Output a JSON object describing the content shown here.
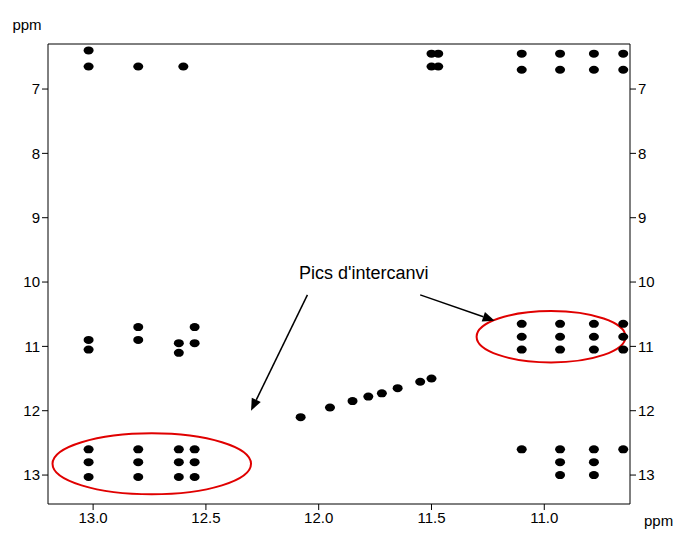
{
  "chart_data": {
    "type": "scatter",
    "x_label": "ppm",
    "y_label": "ppm",
    "xlim": [
      13.2,
      10.62
    ],
    "xticks": [
      {
        "value": 13,
        "label": "13.0"
      },
      {
        "value": 12.5,
        "label": "12.5"
      },
      {
        "value": 12,
        "label": "12.0"
      },
      {
        "value": 11.5,
        "label": "11.5"
      },
      {
        "value": 11,
        "label": "11.0"
      }
    ],
    "ylim": [
      13.45,
      6.3
    ],
    "yticks": [
      7,
      8,
      9,
      10,
      11,
      12,
      13
    ],
    "color": "#000000",
    "marker": "circle",
    "grid": false,
    "x": [
      13.02,
      12.8,
      12.62,
      12.55,
      13.02,
      12.8,
      12.62,
      12.55,
      13.02,
      12.8,
      12.62,
      12.55,
      11.1,
      10.93,
      10.78,
      10.65,
      11.1,
      10.93,
      10.78,
      10.65,
      11.1,
      10.93,
      10.78,
      10.65,
      13.02,
      13.02,
      12.8,
      12.8,
      12.62,
      12.62,
      12.55,
      12.55,
      11.1,
      10.93,
      10.93,
      10.93,
      10.78,
      10.78,
      10.78,
      10.65,
      11.1,
      10.93,
      10.78,
      10.65,
      11.1,
      10.93,
      10.78,
      10.65,
      11.5,
      11.47,
      11.5,
      11.47,
      13.02,
      12.8,
      12.6,
      13.02,
      12.08,
      11.95,
      11.85,
      11.78,
      11.72,
      11.65,
      11.55,
      11.5
    ],
    "y": [
      12.6,
      12.6,
      12.6,
      12.6,
      12.8,
      12.8,
      12.8,
      12.8,
      13.03,
      13.03,
      13.03,
      13.03,
      10.65,
      10.65,
      10.65,
      10.65,
      10.85,
      10.85,
      10.85,
      10.85,
      11.05,
      11.05,
      11.05,
      11.05,
      10.9,
      11.05,
      10.7,
      10.9,
      10.95,
      11.1,
      10.7,
      10.95,
      12.6,
      12.6,
      12.8,
      13.0,
      12.6,
      12.8,
      13.0,
      12.6,
      6.45,
      6.45,
      6.45,
      6.45,
      6.7,
      6.7,
      6.7,
      6.7,
      6.45,
      6.45,
      6.65,
      6.65,
      6.65,
      6.65,
      6.65,
      6.4,
      12.1,
      11.95,
      11.85,
      11.78,
      11.73,
      11.65,
      11.55,
      11.5
    ],
    "regions": [
      {
        "x": [
          13.18,
          12.3
        ],
        "y": [
          12.35,
          13.3
        ],
        "color": "#e00000"
      },
      {
        "x": [
          11.3,
          10.64
        ],
        "y": [
          10.45,
          11.25
        ],
        "color": "#e00000"
      }
    ],
    "annotations": [
      {
        "text": "Pics d'intercanvi",
        "x": 11.8,
        "y": 9.95,
        "arrows": [
          {
            "from": [
              12.05,
              10.2
            ],
            "to": [
              12.3,
              12.0
            ]
          },
          {
            "from": [
              11.55,
              10.2
            ],
            "to": [
              11.22,
              10.6
            ]
          }
        ]
      }
    ]
  }
}
